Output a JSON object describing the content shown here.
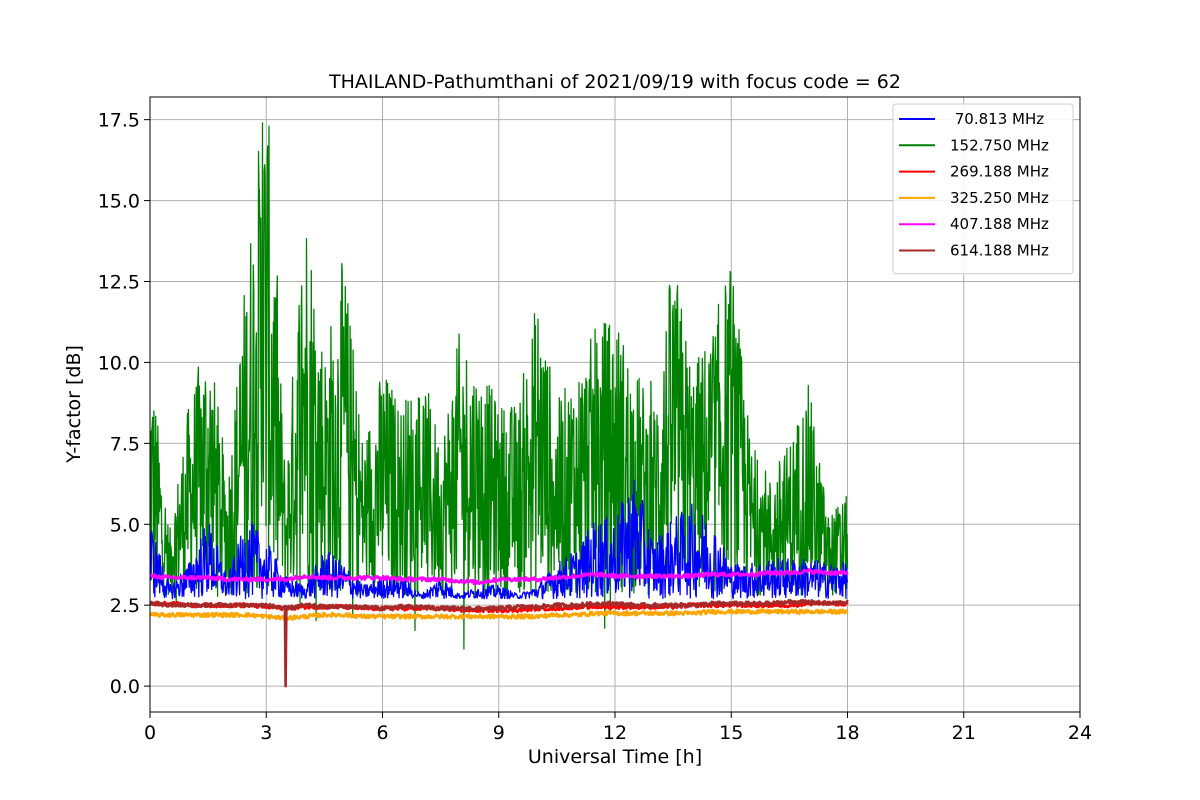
{
  "chart_data": {
    "type": "line",
    "title": "THAILAND-Pathumthani of 2021/09/19 with focus code = 62",
    "xlabel": "Universal Time [h]",
    "ylabel": "Y-factor [dB]",
    "xlim": [
      0,
      24
    ],
    "ylim": [
      -0.8,
      18.2
    ],
    "xticks": [
      0,
      3,
      6,
      9,
      12,
      15,
      18,
      21,
      24
    ],
    "xtick_labels": [
      "0",
      "3",
      "6",
      "9",
      "12",
      "15",
      "18",
      "21",
      "24"
    ],
    "yticks": [
      0.0,
      2.5,
      5.0,
      7.5,
      10.0,
      12.5,
      15.0,
      17.5
    ],
    "ytick_labels": [
      "0.0",
      "2.5",
      "5.0",
      "7.5",
      "10.0",
      "12.5",
      "15.0",
      "17.5"
    ],
    "grid": true,
    "legend_position": "top-right",
    "x": [
      0,
      0.5,
      1,
      1.5,
      2,
      2.5,
      3,
      3.5,
      4,
      4.5,
      5,
      5.5,
      6,
      6.5,
      7,
      7.5,
      8,
      8.5,
      9,
      9.5,
      10,
      10.5,
      11,
      11.5,
      12,
      12.5,
      13,
      13.5,
      14,
      14.5,
      15,
      15.5,
      16,
      16.5,
      17,
      17.5,
      18
    ],
    "series": [
      {
        "name": " 70.813 MHz",
        "color": "#0000ff",
        "values": [
          4.5,
          3.0,
          3.5,
          4.5,
          3.2,
          4.5,
          4.0,
          3.2,
          3.0,
          3.8,
          3.5,
          3.0,
          3.2,
          3.2,
          2.8,
          3.2,
          2.8,
          3.0,
          3.0,
          2.8,
          3.0,
          3.5,
          3.8,
          4.5,
          4.5,
          5.5,
          4.0,
          4.5,
          4.8,
          4.5,
          3.5,
          3.5,
          3.6,
          3.6,
          3.6,
          3.5,
          3.5
        ]
      },
      {
        "name": "152.750 MHz",
        "color": "#008000",
        "values": [
          9.5,
          4.5,
          8.0,
          10.0,
          6.0,
          12.0,
          17.0,
          6.0,
          14.0,
          9.5,
          12.0,
          7.0,
          9.0,
          8.0,
          9.0,
          7.0,
          10.0,
          9.0,
          8.0,
          8.0,
          11.0,
          8.0,
          9.0,
          10.0,
          10.5,
          9.0,
          8.0,
          12.0,
          9.0,
          10.0,
          12.0,
          7.0,
          6.0,
          7.0,
          8.5,
          5.0,
          5.5
        ]
      },
      {
        "name": "269.188 MHz",
        "color": "#ff0000",
        "values": [
          2.55,
          2.55,
          2.5,
          2.5,
          2.5,
          2.5,
          2.45,
          2.4,
          2.45,
          2.45,
          2.45,
          2.4,
          2.4,
          2.4,
          2.4,
          2.4,
          2.35,
          2.35,
          2.35,
          2.35,
          2.4,
          2.4,
          2.45,
          2.45,
          2.45,
          2.45,
          2.45,
          2.45,
          2.5,
          2.5,
          2.5,
          2.5,
          2.5,
          2.5,
          2.55,
          2.55,
          2.55
        ]
      },
      {
        "name": "325.250 MHz",
        "color": "#ffa500",
        "values": [
          2.2,
          2.2,
          2.2,
          2.2,
          2.2,
          2.2,
          2.15,
          2.1,
          2.15,
          2.2,
          2.2,
          2.15,
          2.15,
          2.15,
          2.15,
          2.15,
          2.15,
          2.15,
          2.15,
          2.15,
          2.15,
          2.2,
          2.2,
          2.25,
          2.25,
          2.25,
          2.25,
          2.25,
          2.25,
          2.3,
          2.3,
          2.3,
          2.3,
          2.3,
          2.3,
          2.3,
          2.3
        ]
      },
      {
        "name": "407.188 MHz",
        "color": "#ff00ff",
        "values": [
          3.4,
          3.35,
          3.35,
          3.35,
          3.3,
          3.3,
          3.3,
          3.3,
          3.4,
          3.35,
          3.35,
          3.35,
          3.35,
          3.3,
          3.3,
          3.3,
          3.25,
          3.2,
          3.3,
          3.3,
          3.3,
          3.35,
          3.4,
          3.45,
          3.4,
          3.4,
          3.4,
          3.4,
          3.4,
          3.45,
          3.45,
          3.45,
          3.5,
          3.5,
          3.55,
          3.5,
          3.5
        ]
      },
      {
        "name": "614.188 MHz",
        "color": "#a52a2a",
        "values": [
          2.55,
          2.5,
          2.5,
          2.5,
          2.5,
          2.5,
          2.5,
          2.4,
          2.5,
          2.45,
          2.45,
          2.45,
          2.4,
          2.45,
          2.45,
          2.4,
          2.4,
          2.4,
          2.4,
          2.45,
          2.45,
          2.5,
          2.5,
          2.55,
          2.55,
          2.5,
          2.5,
          2.5,
          2.5,
          2.55,
          2.55,
          2.55,
          2.55,
          2.6,
          2.6,
          2.55,
          2.6
        ]
      }
    ],
    "annotations": [
      {
        "series": "614.188 MHz",
        "type": "dip",
        "x": 3.5,
        "y": 0.0
      },
      {
        "series": "152.750 MHz",
        "type": "peak",
        "x": 2.9,
        "y": 17.4
      }
    ]
  }
}
